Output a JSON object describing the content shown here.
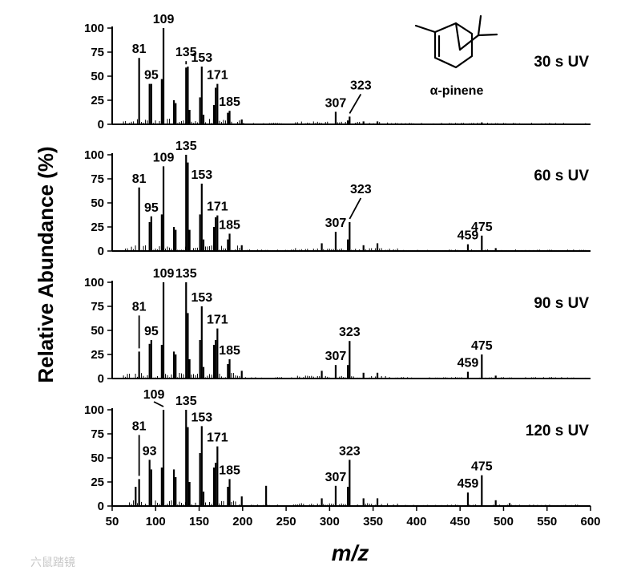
{
  "chart_data": {
    "type": "mass-spectrum-stack",
    "ylabel": "Relative Abundance (%)",
    "xlabel": "m/z",
    "xlim": [
      50,
      600
    ],
    "xticks": [
      50,
      100,
      150,
      200,
      250,
      300,
      350,
      400,
      450,
      500,
      550,
      600
    ],
    "ylim": [
      0,
      100
    ],
    "yticks": [
      0,
      25,
      50,
      75,
      100
    ],
    "molecule_label": "α-pinene",
    "watermark": "六鼠踏镜",
    "panels": [
      {
        "label": "30 s UV",
        "peaks": [
          {
            "mz": 81,
            "abundance": 69
          },
          {
            "mz": 93,
            "abundance": 42
          },
          {
            "mz": 95,
            "abundance": 42
          },
          {
            "mz": 107,
            "abundance": 47
          },
          {
            "mz": 109,
            "abundance": 100
          },
          {
            "mz": 121,
            "abundance": 25
          },
          {
            "mz": 123,
            "abundance": 22
          },
          {
            "mz": 135,
            "abundance": 59
          },
          {
            "mz": 137,
            "abundance": 60
          },
          {
            "mz": 139,
            "abundance": 15
          },
          {
            "mz": 151,
            "abundance": 28
          },
          {
            "mz": 153,
            "abundance": 60
          },
          {
            "mz": 155,
            "abundance": 10
          },
          {
            "mz": 167,
            "abundance": 20
          },
          {
            "mz": 169,
            "abundance": 38
          },
          {
            "mz": 171,
            "abundance": 42
          },
          {
            "mz": 183,
            "abundance": 12
          },
          {
            "mz": 185,
            "abundance": 14
          },
          {
            "mz": 199,
            "abundance": 5
          },
          {
            "mz": 307,
            "abundance": 13
          },
          {
            "mz": 321,
            "abundance": 4
          },
          {
            "mz": 323,
            "abundance": 8
          },
          {
            "mz": 339,
            "abundance": 3
          },
          {
            "mz": 355,
            "abundance": 3
          },
          {
            "mz": 475,
            "abundance": 2
          }
        ],
        "annotations": [
          {
            "text": "81",
            "mz": 81
          },
          {
            "text": "95",
            "mz": 95
          },
          {
            "text": "109",
            "mz": 109
          },
          {
            "text": "135",
            "mz": 135
          },
          {
            "text": "153",
            "mz": 153
          },
          {
            "text": "171",
            "mz": 171
          },
          {
            "text": "185",
            "mz": 185
          },
          {
            "text": "307",
            "mz": 307
          },
          {
            "text": "323",
            "mz": 323
          }
        ]
      },
      {
        "label": "60 s UV",
        "peaks": [
          {
            "mz": 81,
            "abundance": 66
          },
          {
            "mz": 93,
            "abundance": 30
          },
          {
            "mz": 95,
            "abundance": 36
          },
          {
            "mz": 107,
            "abundance": 38
          },
          {
            "mz": 109,
            "abundance": 88
          },
          {
            "mz": 121,
            "abundance": 25
          },
          {
            "mz": 123,
            "abundance": 22
          },
          {
            "mz": 135,
            "abundance": 100
          },
          {
            "mz": 137,
            "abundance": 92
          },
          {
            "mz": 139,
            "abundance": 22
          },
          {
            "mz": 151,
            "abundance": 38
          },
          {
            "mz": 153,
            "abundance": 70
          },
          {
            "mz": 155,
            "abundance": 12
          },
          {
            "mz": 167,
            "abundance": 25
          },
          {
            "mz": 169,
            "abundance": 35
          },
          {
            "mz": 171,
            "abundance": 37
          },
          {
            "mz": 183,
            "abundance": 12
          },
          {
            "mz": 185,
            "abundance": 18
          },
          {
            "mz": 199,
            "abundance": 6
          },
          {
            "mz": 291,
            "abundance": 8
          },
          {
            "mz": 307,
            "abundance": 20
          },
          {
            "mz": 321,
            "abundance": 12
          },
          {
            "mz": 323,
            "abundance": 30
          },
          {
            "mz": 339,
            "abundance": 6
          },
          {
            "mz": 355,
            "abundance": 8
          },
          {
            "mz": 459,
            "abundance": 7
          },
          {
            "mz": 475,
            "abundance": 16
          },
          {
            "mz": 491,
            "abundance": 3
          }
        ],
        "annotations": [
          {
            "text": "81",
            "mz": 81
          },
          {
            "text": "95",
            "mz": 95
          },
          {
            "text": "109",
            "mz": 109
          },
          {
            "text": "135",
            "mz": 135
          },
          {
            "text": "153",
            "mz": 153
          },
          {
            "text": "171",
            "mz": 171
          },
          {
            "text": "185",
            "mz": 185
          },
          {
            "text": "307",
            "mz": 307
          },
          {
            "text": "323",
            "mz": 323
          },
          {
            "text": "459",
            "mz": 459
          },
          {
            "text": "475",
            "mz": 475
          }
        ]
      },
      {
        "label": "90 s UV",
        "peaks": [
          {
            "mz": 81,
            "abundance": 28
          },
          {
            "mz": 93,
            "abundance": 36
          },
          {
            "mz": 95,
            "abundance": 40
          },
          {
            "mz": 107,
            "abundance": 35
          },
          {
            "mz": 109,
            "abundance": 100
          },
          {
            "mz": 121,
            "abundance": 28
          },
          {
            "mz": 123,
            "abundance": 25
          },
          {
            "mz": 135,
            "abundance": 100
          },
          {
            "mz": 137,
            "abundance": 68
          },
          {
            "mz": 139,
            "abundance": 20
          },
          {
            "mz": 151,
            "abundance": 40
          },
          {
            "mz": 153,
            "abundance": 75
          },
          {
            "mz": 155,
            "abundance": 12
          },
          {
            "mz": 167,
            "abundance": 35
          },
          {
            "mz": 169,
            "abundance": 40
          },
          {
            "mz": 171,
            "abundance": 52
          },
          {
            "mz": 183,
            "abundance": 15
          },
          {
            "mz": 185,
            "abundance": 20
          },
          {
            "mz": 199,
            "abundance": 8
          },
          {
            "mz": 291,
            "abundance": 8
          },
          {
            "mz": 307,
            "abundance": 14
          },
          {
            "mz": 321,
            "abundance": 14
          },
          {
            "mz": 323,
            "abundance": 39
          },
          {
            "mz": 339,
            "abundance": 6
          },
          {
            "mz": 355,
            "abundance": 6
          },
          {
            "mz": 459,
            "abundance": 7
          },
          {
            "mz": 475,
            "abundance": 25
          },
          {
            "mz": 491,
            "abundance": 3
          }
        ],
        "annotations": [
          {
            "text": "81",
            "mz": 81
          },
          {
            "text": "95",
            "mz": 95
          },
          {
            "text": "109",
            "mz": 109
          },
          {
            "text": "135",
            "mz": 135
          },
          {
            "text": "153",
            "mz": 153
          },
          {
            "text": "171",
            "mz": 171
          },
          {
            "text": "185",
            "mz": 185
          },
          {
            "text": "307",
            "mz": 307
          },
          {
            "text": "323",
            "mz": 323
          },
          {
            "text": "459",
            "mz": 459
          },
          {
            "text": "475",
            "mz": 475
          }
        ]
      },
      {
        "label": "120 s UV",
        "peaks": [
          {
            "mz": 77,
            "abundance": 20
          },
          {
            "mz": 81,
            "abundance": 28
          },
          {
            "mz": 93,
            "abundance": 48
          },
          {
            "mz": 95,
            "abundance": 38
          },
          {
            "mz": 107,
            "abundance": 40
          },
          {
            "mz": 109,
            "abundance": 100
          },
          {
            "mz": 121,
            "abundance": 38
          },
          {
            "mz": 123,
            "abundance": 30
          },
          {
            "mz": 135,
            "abundance": 100
          },
          {
            "mz": 137,
            "abundance": 82
          },
          {
            "mz": 139,
            "abundance": 25
          },
          {
            "mz": 151,
            "abundance": 55
          },
          {
            "mz": 153,
            "abundance": 83
          },
          {
            "mz": 155,
            "abundance": 15
          },
          {
            "mz": 167,
            "abundance": 40
          },
          {
            "mz": 169,
            "abundance": 45
          },
          {
            "mz": 171,
            "abundance": 62
          },
          {
            "mz": 183,
            "abundance": 20
          },
          {
            "mz": 185,
            "abundance": 28
          },
          {
            "mz": 199,
            "abundance": 10
          },
          {
            "mz": 227,
            "abundance": 21
          },
          {
            "mz": 291,
            "abundance": 8
          },
          {
            "mz": 307,
            "abundance": 21
          },
          {
            "mz": 321,
            "abundance": 20
          },
          {
            "mz": 323,
            "abundance": 48
          },
          {
            "mz": 339,
            "abundance": 8
          },
          {
            "mz": 355,
            "abundance": 8
          },
          {
            "mz": 459,
            "abundance": 14
          },
          {
            "mz": 475,
            "abundance": 32
          },
          {
            "mz": 491,
            "abundance": 6
          },
          {
            "mz": 507,
            "abundance": 3
          }
        ],
        "annotations": [
          {
            "text": "81",
            "mz": 81
          },
          {
            "text": "93",
            "mz": 93
          },
          {
            "text": "109",
            "mz": 109
          },
          {
            "text": "135",
            "mz": 135
          },
          {
            "text": "153",
            "mz": 153
          },
          {
            "text": "171",
            "mz": 171
          },
          {
            "text": "185",
            "mz": 185
          },
          {
            "text": "307",
            "mz": 307
          },
          {
            "text": "323",
            "mz": 323
          },
          {
            "text": "459",
            "mz": 459
          },
          {
            "text": "475",
            "mz": 475
          }
        ]
      }
    ]
  }
}
